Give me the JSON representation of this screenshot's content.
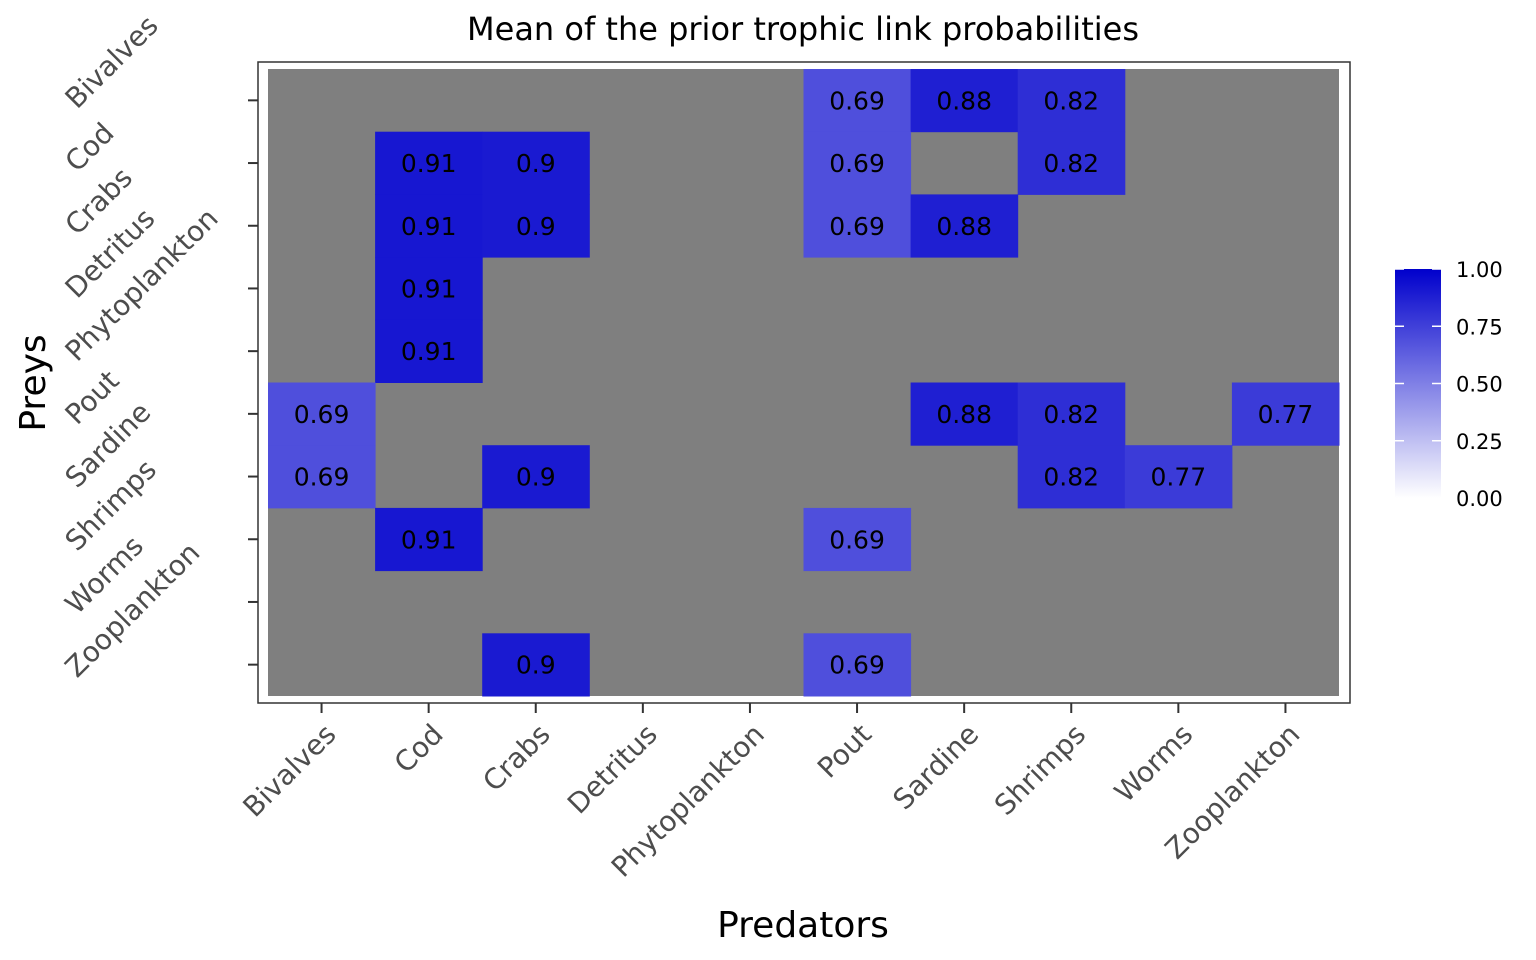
{
  "chart_data": {
    "type": "heatmap",
    "title": "Mean of the prior trophic link probabilities",
    "xlabel": "Predators",
    "ylabel": "Preys",
    "x_categories": [
      "Bivalves",
      "Cod",
      "Crabs",
      "Detritus",
      "Phytoplankton",
      "Pout",
      "Sardine",
      "Shrimps",
      "Worms",
      "Zooplankton"
    ],
    "y_categories": [
      "Bivalves",
      "Cod",
      "Crabs",
      "Detritus",
      "Phytoplankton",
      "Pout",
      "Sardine",
      "Shrimps",
      "Worms",
      "Zooplankton"
    ],
    "y_tick_labels": [
      "Bivalves",
      "Cod",
      "Crabs",
      "Detritus",
      "Phytoplankton",
      "Pout",
      "Sardine",
      "Shrimps",
      "Worms",
      "Zooplankton"
    ],
    "cells": [
      {
        "x": "Pout",
        "y": "Bivalves",
        "value": 0.69,
        "label": "0.69"
      },
      {
        "x": "Sardine",
        "y": "Bivalves",
        "value": 0.88,
        "label": "0.88"
      },
      {
        "x": "Shrimps",
        "y": "Bivalves",
        "value": 0.82,
        "label": "0.82"
      },
      {
        "x": "Cod",
        "y": "Cod",
        "value": 0.91,
        "label": "0.91"
      },
      {
        "x": "Crabs",
        "y": "Cod",
        "value": 0.9,
        "label": "0.9"
      },
      {
        "x": "Pout",
        "y": "Cod",
        "value": 0.69,
        "label": "0.69"
      },
      {
        "x": "Shrimps",
        "y": "Cod",
        "value": 0.82,
        "label": "0.82"
      },
      {
        "x": "Cod",
        "y": "Crabs",
        "value": 0.91,
        "label": "0.91"
      },
      {
        "x": "Crabs",
        "y": "Crabs",
        "value": 0.9,
        "label": "0.9"
      },
      {
        "x": "Pout",
        "y": "Crabs",
        "value": 0.69,
        "label": "0.69"
      },
      {
        "x": "Sardine",
        "y": "Crabs",
        "value": 0.88,
        "label": "0.88"
      },
      {
        "x": "Cod",
        "y": "Detritus",
        "value": 0.91,
        "label": "0.91"
      },
      {
        "x": "Cod",
        "y": "Phytoplankton",
        "value": 0.91,
        "label": "0.91"
      },
      {
        "x": "Bivalves",
        "y": "Pout",
        "value": 0.69,
        "label": "0.69"
      },
      {
        "x": "Sardine",
        "y": "Pout",
        "value": 0.88,
        "label": "0.88"
      },
      {
        "x": "Shrimps",
        "y": "Pout",
        "value": 0.82,
        "label": "0.82"
      },
      {
        "x": "Zooplankton",
        "y": "Pout",
        "value": 0.77,
        "label": "0.77"
      },
      {
        "x": "Bivalves",
        "y": "Sardine",
        "value": 0.69,
        "label": "0.69"
      },
      {
        "x": "Crabs",
        "y": "Sardine",
        "value": 0.9,
        "label": "0.9"
      },
      {
        "x": "Shrimps",
        "y": "Sardine",
        "value": 0.82,
        "label": "0.82"
      },
      {
        "x": "Worms",
        "y": "Sardine",
        "value": 0.77,
        "label": "0.77"
      },
      {
        "x": "Cod",
        "y": "Shrimps",
        "value": 0.91,
        "label": "0.91"
      },
      {
        "x": "Pout",
        "y": "Shrimps",
        "value": 0.69,
        "label": "0.69"
      },
      {
        "x": "Crabs",
        "y": "Zooplankton",
        "value": 0.9,
        "label": "0.9"
      },
      {
        "x": "Pout",
        "y": "Zooplankton",
        "value": 0.69,
        "label": "0.69"
      }
    ],
    "empty_cell_color": "#7f7f7f",
    "color_scale": {
      "low": "#ffffff",
      "high": "#0000cc",
      "limits": [
        0,
        1
      ]
    },
    "legend": {
      "position": "right",
      "breaks": [
        0,
        0.25,
        0.5,
        0.75,
        1
      ],
      "labels": [
        "0.00",
        "0.25",
        "0.50",
        "0.75",
        "1.00"
      ]
    }
  }
}
